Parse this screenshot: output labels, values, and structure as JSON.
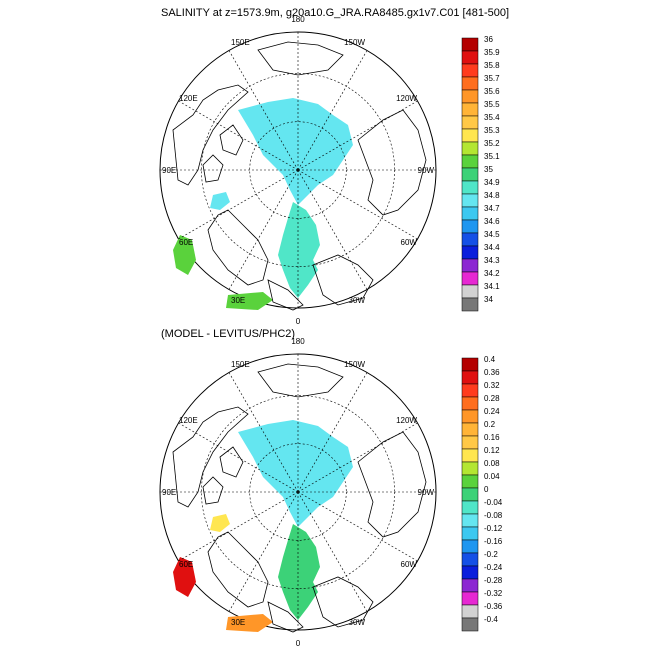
{
  "top": {
    "title": "SALINITY at z=1573.9m, g20a10.G_JRA.RA8485.gx1v7.C01 [481-500]",
    "lon_labels": {
      "n": "180",
      "s": "0",
      "w": "90W",
      "e": "90E",
      "nw_top": "150W",
      "nw_bot": "120W",
      "ne_top": "150E",
      "ne_bot": "120E",
      "sw_top": "60W",
      "sw_bot": "30W",
      "se_top": "60E",
      "se_bot": "30E"
    },
    "colorbar": {
      "labels": [
        "36",
        "35.9",
        "35.8",
        "35.7",
        "35.6",
        "35.5",
        "35.4",
        "35.3",
        "35.2",
        "35.1",
        "35",
        "34.9",
        "34.8",
        "34.7",
        "34.6",
        "34.5",
        "34.4",
        "34.3",
        "34.2",
        "34.1",
        "34"
      ],
      "colors": [
        "#b40000",
        "#e01010",
        "#ff3c1e",
        "#ff6e1e",
        "#ff9628",
        "#ffb437",
        "#ffc846",
        "#ffe650",
        "#b4e632",
        "#5ad23c",
        "#3cd278",
        "#50e6c8",
        "#64e6f0",
        "#3cc8f0",
        "#1e96f0",
        "#1450e6",
        "#0a1edc",
        "#8c28d2",
        "#e628d2",
        "#d2d2d2",
        "#787878"
      ]
    },
    "regions": [
      {
        "name": "central-arctic",
        "color": "#64e6f0"
      },
      {
        "name": "fram-strait",
        "color": "#50e6c8"
      },
      {
        "name": "labrador-sea",
        "color": "#64e6f0"
      },
      {
        "name": "north-atlantic-west",
        "color": "#5ad23c"
      },
      {
        "name": "north-atlantic-south",
        "color": "#5ad23c"
      }
    ]
  },
  "bottom": {
    "title": "(MODEL - LEVITUS/PHC2)",
    "lon_labels": {
      "n": "180",
      "s": "0",
      "w": "90W",
      "e": "90E",
      "nw_top": "150W",
      "nw_bot": "120W",
      "ne_top": "150E",
      "ne_bot": "120E",
      "sw_top": "60W",
      "sw_bot": "30W",
      "se_top": "60E",
      "se_bot": "30E"
    },
    "colorbar": {
      "labels": [
        "0.4",
        "0.36",
        "0.32",
        "0.28",
        "0.24",
        "0.2",
        "0.16",
        "0.12",
        "0.08",
        "0.04",
        "0",
        "-0.04",
        "-0.08",
        "-0.12",
        "-0.16",
        "-0.2",
        "-0.24",
        "-0.28",
        "-0.32",
        "-0.36",
        "-0.4"
      ],
      "colors": [
        "#b40000",
        "#e01010",
        "#ff3c1e",
        "#ff6e1e",
        "#ff9628",
        "#ffb437",
        "#ffc846",
        "#ffe650",
        "#b4e632",
        "#5ad23c",
        "#3cd278",
        "#50e6c8",
        "#64e6f0",
        "#3cc8f0",
        "#1e96f0",
        "#1450e6",
        "#0a1edc",
        "#8c28d2",
        "#e628d2",
        "#d2d2d2",
        "#787878"
      ]
    },
    "regions": [
      {
        "name": "central-arctic",
        "color": "#64e6f0"
      },
      {
        "name": "fram-strait",
        "color": "#3cd278"
      },
      {
        "name": "labrador-sea",
        "color": "#ffe650"
      },
      {
        "name": "north-atlantic-west",
        "color": "#e01010"
      },
      {
        "name": "north-atlantic-south",
        "color": "#ff9628"
      }
    ]
  },
  "colors": {
    "land_outline": "#000000",
    "grid": "#000000",
    "background": "#ffffff"
  }
}
